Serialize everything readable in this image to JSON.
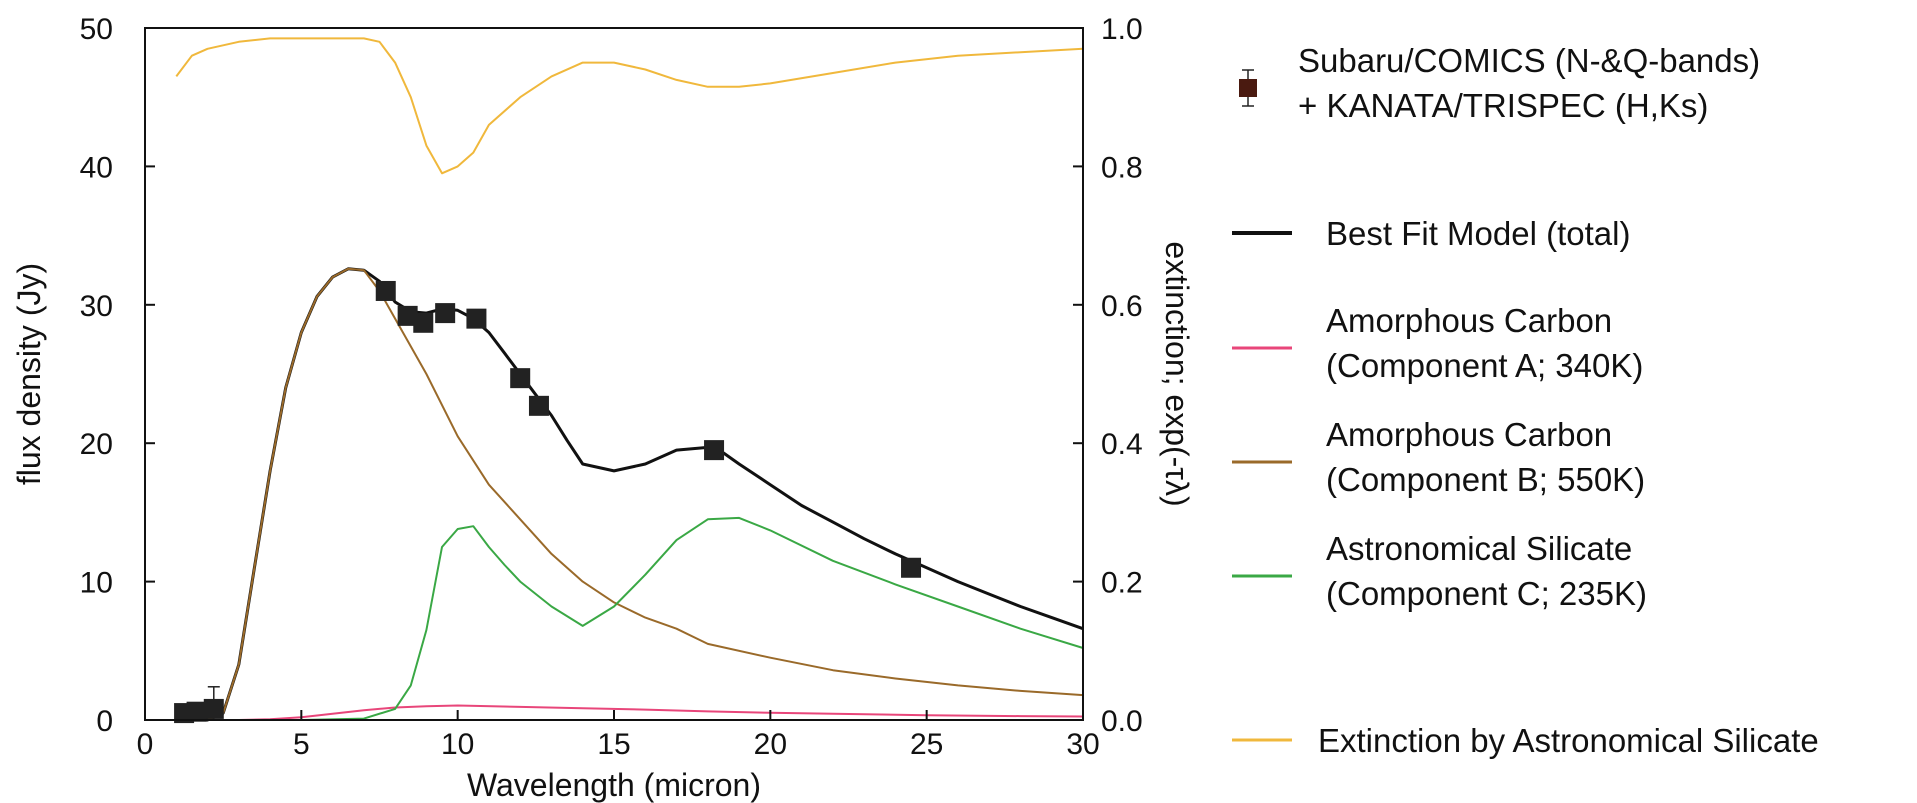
{
  "chart_data": {
    "type": "line",
    "title": "",
    "xlabel": "Wavelength (micron)",
    "ylabel": "flux density (Jy)",
    "y2label": "extinction; exp(-τλ)",
    "xlim": [
      0,
      30
    ],
    "ylim": [
      0,
      50
    ],
    "y2lim": [
      0.0,
      1.0
    ],
    "xticks": [
      "0",
      "5",
      "10",
      "15",
      "20",
      "25",
      "30"
    ],
    "yticks": [
      "0",
      "10",
      "20",
      "30",
      "40",
      "50"
    ],
    "y2ticks": [
      "0.0",
      "0.2",
      "0.4",
      "0.6",
      "0.8",
      "1.0"
    ],
    "grid": false,
    "legend_position": "right",
    "series": [
      {
        "name": "Subaru/COMICS (N-&Q-bands) + KANATA/TRISPEC (H,Ks)",
        "legend_lines": [
          "Subaru/COMICS (N-&Q-bands)",
          "+ KANATA/TRISPEC (H,Ks)"
        ],
        "kind": "scatter",
        "color": "#222222",
        "legend_color": "#4a1a10",
        "x": [
          1.25,
          1.65,
          2.2,
          7.7,
          8.4,
          8.9,
          9.6,
          10.6,
          12.0,
          12.6,
          18.2,
          24.5
        ],
        "y": [
          0.5,
          0.6,
          0.8,
          31.0,
          29.2,
          28.7,
          29.4,
          29.0,
          24.7,
          22.7,
          19.5,
          11.0
        ],
        "yerr": [
          0.0,
          0.0,
          1.6,
          0,
          0,
          0,
          0,
          0,
          0,
          0,
          0,
          0
        ]
      },
      {
        "name": "Best Fit Model (total)",
        "legend_lines": [
          "Best Fit Model (total)"
        ],
        "kind": "line",
        "color": "#111111",
        "x": [
          1,
          1.5,
          2,
          2.5,
          3,
          3.5,
          4,
          4.5,
          5,
          5.5,
          6,
          6.5,
          7,
          7.5,
          8,
          8.5,
          9,
          9.5,
          10,
          10.5,
          11,
          11.5,
          12,
          12.5,
          13,
          13.5,
          14,
          15,
          16,
          17,
          18,
          18.5,
          19,
          20,
          21,
          22,
          23,
          24,
          25,
          26,
          27,
          28,
          29,
          30
        ],
        "y": [
          0,
          0,
          0,
          0.5,
          4,
          11,
          18,
          24,
          28,
          30.6,
          32,
          32.6,
          32.5,
          31.7,
          30.2,
          29.5,
          29.4,
          29.7,
          29.6,
          29.0,
          28.0,
          26.5,
          25.0,
          23.5,
          22.0,
          20.2,
          18.5,
          18.0,
          18.5,
          19.5,
          19.7,
          19.3,
          18.5,
          17.0,
          15.5,
          14.3,
          13.1,
          12.0,
          11.0,
          10.0,
          9.1,
          8.2,
          7.4,
          6.6
        ]
      },
      {
        "name": "Amorphous Carbon (Component A; 340K)",
        "legend_lines": [
          "Amorphous Carbon",
          "(Component A; 340K)"
        ],
        "kind": "line",
        "color": "#e8467a",
        "x": [
          1,
          3,
          4,
          5,
          6,
          7,
          8,
          9,
          10,
          12,
          14,
          16,
          18,
          20,
          22,
          25,
          28,
          30
        ],
        "y": [
          0,
          0,
          0.05,
          0.2,
          0.45,
          0.7,
          0.9,
          1.0,
          1.05,
          0.95,
          0.85,
          0.75,
          0.62,
          0.52,
          0.45,
          0.35,
          0.28,
          0.25
        ]
      },
      {
        "name": "Amorphous Carbon (Component B; 550K)",
        "legend_lines": [
          "Amorphous Carbon",
          " (Component B; 550K)"
        ],
        "kind": "line",
        "color": "#9a6a2a",
        "x": [
          1,
          2,
          2.5,
          3,
          3.5,
          4,
          4.5,
          5,
          5.5,
          6,
          6.5,
          7,
          7.5,
          8,
          9,
          10,
          11,
          12,
          13,
          14,
          15,
          16,
          17,
          18,
          20,
          22,
          24,
          26,
          28,
          30
        ],
        "y": [
          0,
          0,
          0.5,
          4,
          11,
          18,
          24,
          28,
          30.6,
          32,
          32.6,
          32.5,
          31,
          29,
          25,
          20.5,
          17,
          14.5,
          12,
          10,
          8.5,
          7.4,
          6.6,
          5.5,
          4.5,
          3.6,
          3.0,
          2.5,
          2.1,
          1.8
        ]
      },
      {
        "name": "Astronomical Silicate (Component C; 235K)",
        "legend_lines": [
          "Astronomical Silicate",
          " (Component C; 235K)"
        ],
        "kind": "line",
        "color": "#3aa845",
        "x": [
          1,
          5,
          7,
          8,
          8.5,
          9,
          9.5,
          10,
          10.5,
          11,
          11.5,
          12,
          13,
          14,
          15,
          16,
          17,
          18,
          19,
          20,
          22,
          24,
          26,
          28,
          30
        ],
        "y": [
          0,
          0,
          0.1,
          0.8,
          2.5,
          6.5,
          12.5,
          13.8,
          14.0,
          12.5,
          11.2,
          10.0,
          8.2,
          6.8,
          8.2,
          10.5,
          13.0,
          14.5,
          14.6,
          13.7,
          11.5,
          9.8,
          8.2,
          6.6,
          5.2
        ]
      },
      {
        "name": "Extinction by Astronomical Silicate",
        "legend_lines": [
          "Extinction by Astronomical Silicate"
        ],
        "kind": "line",
        "axis": "y2",
        "color": "#f0b83c",
        "x": [
          1,
          1.5,
          2,
          3,
          4,
          5,
          6,
          7,
          7.5,
          8,
          8.5,
          9,
          9.5,
          10,
          10.5,
          11,
          12,
          13,
          14,
          15,
          16,
          17,
          18,
          19,
          20,
          22,
          24,
          26,
          28,
          30
        ],
        "y": [
          0.93,
          0.96,
          0.97,
          0.98,
          0.985,
          0.985,
          0.985,
          0.985,
          0.98,
          0.95,
          0.9,
          0.83,
          0.79,
          0.8,
          0.82,
          0.86,
          0.9,
          0.93,
          0.95,
          0.95,
          0.94,
          0.925,
          0.915,
          0.915,
          0.92,
          0.935,
          0.95,
          0.96,
          0.965,
          0.97
        ]
      }
    ]
  }
}
